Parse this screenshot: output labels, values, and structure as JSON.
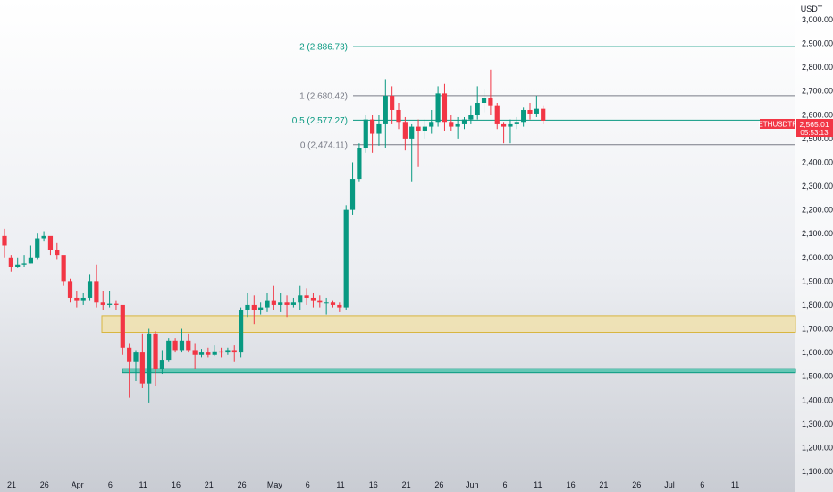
{
  "chart_data": {
    "type": "candlestick",
    "quote_currency": "USDT",
    "symbol": "ETHUSDTP",
    "last_price": "2,565.01",
    "countdown": "05:53:13",
    "y_range": [
      1100,
      3000
    ],
    "y_ticks": [
      "3,000.00",
      "2,900.00",
      "2,800.00",
      "2,700.00",
      "2,600.00",
      "2,500.00",
      "2,400.00",
      "2,300.00",
      "2,200.00",
      "2,100.00",
      "2,000.00",
      "1,900.00",
      "1,800.00",
      "1,700.00",
      "1,600.00",
      "1,500.00",
      "1,400.00",
      "1,300.00",
      "1,200.00",
      "1,100.00"
    ],
    "x_ticks": [
      "21",
      "26",
      "Apr",
      "6",
      "11",
      "16",
      "21",
      "26",
      "May",
      "6",
      "11",
      "16",
      "21",
      "26",
      "Jun",
      "6",
      "11",
      "16",
      "21",
      "26",
      "Jul",
      "6",
      "11"
    ],
    "fib_levels": [
      {
        "label": "2 (2,886.73)",
        "price": 2886.73,
        "color": "#089981"
      },
      {
        "label": "1 (2,680.42)",
        "price": 2680.42,
        "color": "#787b86"
      },
      {
        "label": "0.5 (2,577.27)",
        "price": 2577.27,
        "color": "#089981"
      },
      {
        "label": "0 (2,474.11)",
        "price": 2474.11,
        "color": "#787b86"
      }
    ],
    "zones": [
      {
        "name": "resistance-zone",
        "from": 1685,
        "to": 1755,
        "color": "#f2dfa0"
      },
      {
        "name": "support-zone",
        "from": 1515,
        "to": 1532,
        "color": "#3cbfa5"
      }
    ],
    "candles": [
      [
        2090,
        2120,
        2050,
        2000
      ],
      [
        2000,
        2010,
        1960,
        1940
      ],
      [
        1960,
        2000,
        1970,
        1955
      ],
      [
        1970,
        2010,
        1975,
        1960
      ],
      [
        1975,
        2050,
        2000,
        1975
      ],
      [
        2000,
        2100,
        2080,
        1990
      ],
      [
        2080,
        2110,
        2090,
        2070
      ],
      [
        2090,
        2080,
        2030,
        2010
      ],
      [
        2030,
        2060,
        2010,
        1990
      ],
      [
        2010,
        2000,
        1900,
        1880
      ],
      [
        1900,
        1910,
        1830,
        1810
      ],
      [
        1830,
        1860,
        1820,
        1790
      ],
      [
        1820,
        1850,
        1830,
        1800
      ],
      [
        1830,
        1930,
        1900,
        1820
      ],
      [
        1900,
        1970,
        1810,
        1790
      ],
      [
        1810,
        1860,
        1800,
        1780
      ],
      [
        1800,
        1860,
        1805,
        1790
      ],
      [
        1805,
        1820,
        1800,
        1780
      ],
      [
        1800,
        1790,
        1620,
        1590
      ],
      [
        1620,
        1640,
        1560,
        1410
      ],
      [
        1560,
        1610,
        1600,
        1480
      ],
      [
        1600,
        1680,
        1470,
        1450
      ],
      [
        1470,
        1700,
        1680,
        1390
      ],
      [
        1680,
        1690,
        1530,
        1460
      ],
      [
        1530,
        1610,
        1570,
        1510
      ],
      [
        1570,
        1660,
        1650,
        1560
      ],
      [
        1650,
        1660,
        1610,
        1600
      ],
      [
        1610,
        1700,
        1650,
        1600
      ],
      [
        1650,
        1680,
        1610,
        1600
      ],
      [
        1610,
        1640,
        1590,
        1530
      ],
      [
        1590,
        1615,
        1600,
        1580
      ],
      [
        1600,
        1620,
        1590,
        1580
      ],
      [
        1590,
        1630,
        1605,
        1585
      ],
      [
        1605,
        1620,
        1600,
        1580
      ],
      [
        1600,
        1620,
        1610,
        1590
      ],
      [
        1610,
        1630,
        1600,
        1560
      ],
      [
        1600,
        1790,
        1780,
        1580
      ],
      [
        1780,
        1850,
        1800,
        1750
      ],
      [
        1800,
        1840,
        1780,
        1720
      ],
      [
        1780,
        1810,
        1790,
        1760
      ],
      [
        1790,
        1850,
        1820,
        1770
      ],
      [
        1820,
        1880,
        1800,
        1780
      ],
      [
        1800,
        1850,
        1810,
        1770
      ],
      [
        1810,
        1840,
        1800,
        1750
      ],
      [
        1800,
        1830,
        1810,
        1790
      ],
      [
        1810,
        1880,
        1840,
        1780
      ],
      [
        1840,
        1870,
        1830,
        1800
      ],
      [
        1830,
        1850,
        1820,
        1790
      ],
      [
        1820,
        1840,
        1810,
        1790
      ],
      [
        1810,
        1830,
        1810,
        1760
      ],
      [
        1810,
        1820,
        1800,
        1790
      ],
      [
        1800,
        1810,
        1790,
        1770
      ],
      [
        1790,
        2220,
        2200,
        1780
      ],
      [
        2200,
        2400,
        2330,
        2180
      ],
      [
        2330,
        2480,
        2460,
        2320
      ],
      [
        2460,
        2600,
        2580,
        2440
      ],
      [
        2580,
        2600,
        2520,
        2440
      ],
      [
        2520,
        2600,
        2560,
        2470
      ],
      [
        2560,
        2750,
        2680,
        2460
      ],
      [
        2680,
        2720,
        2620,
        2560
      ],
      [
        2620,
        2650,
        2570,
        2540
      ],
      [
        2570,
        2590,
        2500,
        2450
      ],
      [
        2500,
        2560,
        2550,
        2320
      ],
      [
        2550,
        2580,
        2530,
        2380
      ],
      [
        2530,
        2580,
        2550,
        2500
      ],
      [
        2550,
        2620,
        2570,
        2520
      ],
      [
        2570,
        2720,
        2690,
        2550
      ],
      [
        2690,
        2730,
        2570,
        2530
      ],
      [
        2570,
        2600,
        2550,
        2530
      ],
      [
        2550,
        2590,
        2560,
        2500
      ],
      [
        2560,
        2590,
        2580,
        2540
      ],
      [
        2580,
        2640,
        2600,
        2560
      ],
      [
        2600,
        2720,
        2650,
        2580
      ],
      [
        2650,
        2710,
        2670,
        2610
      ],
      [
        2670,
        2790,
        2640,
        2600
      ],
      [
        2640,
        2650,
        2560,
        2540
      ],
      [
        2560,
        2570,
        2550,
        2480
      ],
      [
        2550,
        2580,
        2560,
        2480
      ],
      [
        2560,
        2590,
        2570,
        2540
      ],
      [
        2570,
        2630,
        2620,
        2550
      ],
      [
        2620,
        2650,
        2605,
        2580
      ],
      [
        2605,
        2680,
        2625,
        2590
      ],
      [
        2625,
        2640,
        2575,
        2560
      ]
    ]
  }
}
